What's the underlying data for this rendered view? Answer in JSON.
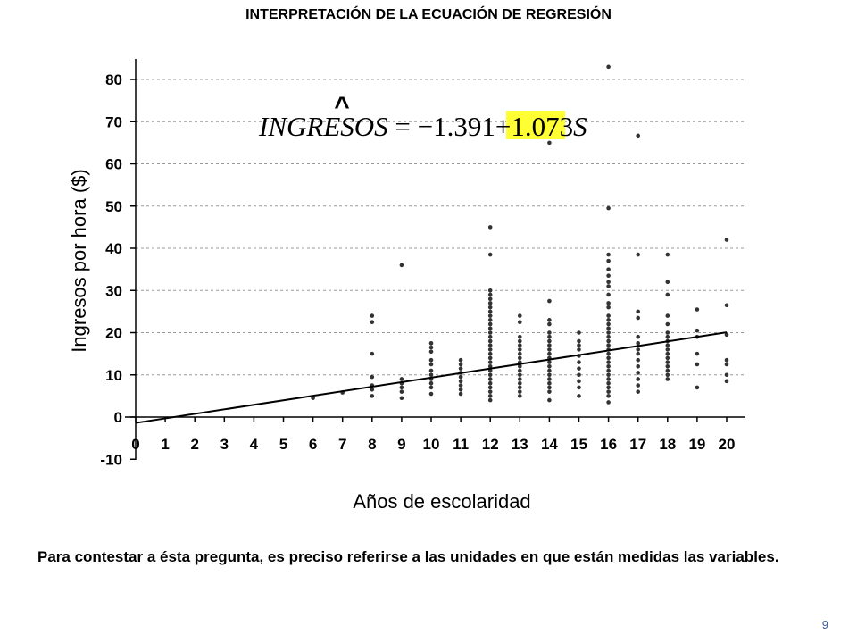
{
  "slide": {
    "title": "INTERPRETACIÓN DE LA ECUACIÓN DE REGRESIÓN",
    "caption": "Para contestar a ésta pregunta, es preciso referirse a las unidades en que están medidas las variables.",
    "page_number": "9"
  },
  "equation": {
    "hat": "^",
    "lhs": "INGRESOS",
    "equals_intercept": " = −1.391+",
    "slope": "1.073",
    "var": "S",
    "highlight_color": "#ffff33"
  },
  "chart_data": {
    "type": "scatter",
    "xlabel": "Años de escolaridad",
    "ylabel": "Ingresos por hora ($)",
    "xlim": [
      0,
      20
    ],
    "ylim": [
      -10,
      85
    ],
    "x_ticks": [
      0,
      1,
      2,
      3,
      4,
      5,
      6,
      7,
      8,
      9,
      10,
      11,
      12,
      13,
      14,
      15,
      16,
      17,
      18,
      19,
      20
    ],
    "y_ticks": [
      -10,
      0,
      10,
      20,
      30,
      40,
      50,
      60,
      70,
      80
    ],
    "grid": "horizontal dashed",
    "regression_line": {
      "intercept": -1.391,
      "slope": 1.073
    },
    "marker_color": "#333333",
    "line_color": "#000000",
    "points": [
      [
        6,
        4.5
      ],
      [
        7,
        5.8
      ],
      [
        8,
        5
      ],
      [
        8,
        6.5
      ],
      [
        8,
        7.5
      ],
      [
        8,
        9.5
      ],
      [
        8,
        15
      ],
      [
        8,
        22.5
      ],
      [
        8,
        24
      ],
      [
        9,
        4.5
      ],
      [
        9,
        6
      ],
      [
        9,
        7
      ],
      [
        9,
        8
      ],
      [
        9,
        9
      ],
      [
        9,
        36
      ],
      [
        10,
        5.5
      ],
      [
        10,
        7
      ],
      [
        10,
        8
      ],
      [
        10,
        9
      ],
      [
        10,
        10
      ],
      [
        10,
        11
      ],
      [
        10,
        12.5
      ],
      [
        10,
        13.5
      ],
      [
        10,
        15.5
      ],
      [
        10,
        16.5
      ],
      [
        10,
        17.5
      ],
      [
        11,
        5.5
      ],
      [
        11,
        6.5
      ],
      [
        11,
        7.5
      ],
      [
        11,
        8.5
      ],
      [
        11,
        9.5
      ],
      [
        11,
        10.5
      ],
      [
        11,
        11.5
      ],
      [
        11,
        12.5
      ],
      [
        11,
        13.5
      ],
      [
        12,
        4
      ],
      [
        12,
        5
      ],
      [
        12,
        6
      ],
      [
        12,
        7
      ],
      [
        12,
        8
      ],
      [
        12,
        9
      ],
      [
        12,
        10
      ],
      [
        12,
        11
      ],
      [
        12,
        12
      ],
      [
        12,
        13
      ],
      [
        12,
        14
      ],
      [
        12,
        15
      ],
      [
        12,
        16
      ],
      [
        12,
        17
      ],
      [
        12,
        18
      ],
      [
        12,
        19
      ],
      [
        12,
        20
      ],
      [
        12,
        21
      ],
      [
        12,
        22
      ],
      [
        12,
        23
      ],
      [
        12,
        24
      ],
      [
        12,
        25
      ],
      [
        12,
        26
      ],
      [
        12,
        27
      ],
      [
        12,
        28
      ],
      [
        12,
        29
      ],
      [
        12,
        30
      ],
      [
        12,
        38.5
      ],
      [
        12,
        45
      ],
      [
        13,
        5
      ],
      [
        13,
        6
      ],
      [
        13,
        7
      ],
      [
        13,
        8
      ],
      [
        13,
        9
      ],
      [
        13,
        10
      ],
      [
        13,
        11
      ],
      [
        13,
        12
      ],
      [
        13,
        13
      ],
      [
        13,
        14
      ],
      [
        13,
        15
      ],
      [
        13,
        16
      ],
      [
        13,
        17
      ],
      [
        13,
        18
      ],
      [
        13,
        19
      ],
      [
        13,
        22.5
      ],
      [
        13,
        24
      ],
      [
        14,
        4
      ],
      [
        14,
        6
      ],
      [
        14,
        7
      ],
      [
        14,
        8
      ],
      [
        14,
        9
      ],
      [
        14,
        10
      ],
      [
        14,
        11
      ],
      [
        14,
        12
      ],
      [
        14,
        13
      ],
      [
        14,
        14
      ],
      [
        14,
        15
      ],
      [
        14,
        16
      ],
      [
        14,
        17
      ],
      [
        14,
        18
      ],
      [
        14,
        19
      ],
      [
        14,
        20
      ],
      [
        14,
        22
      ],
      [
        14,
        23
      ],
      [
        14,
        27.5
      ],
      [
        14,
        65
      ],
      [
        15,
        5
      ],
      [
        15,
        7
      ],
      [
        15,
        8.5
      ],
      [
        15,
        10
      ],
      [
        15,
        11.5
      ],
      [
        15,
        13
      ],
      [
        15,
        14.5
      ],
      [
        15,
        16
      ],
      [
        15,
        17
      ],
      [
        15,
        18
      ],
      [
        15,
        20
      ],
      [
        16,
        3.5
      ],
      [
        16,
        5
      ],
      [
        16,
        6
      ],
      [
        16,
        7
      ],
      [
        16,
        8
      ],
      [
        16,
        9
      ],
      [
        16,
        10
      ],
      [
        16,
        11
      ],
      [
        16,
        12
      ],
      [
        16,
        13
      ],
      [
        16,
        14
      ],
      [
        16,
        15
      ],
      [
        16,
        16
      ],
      [
        16,
        17
      ],
      [
        16,
        18
      ],
      [
        16,
        19
      ],
      [
        16,
        20
      ],
      [
        16,
        21
      ],
      [
        16,
        22
      ],
      [
        16,
        23
      ],
      [
        16,
        24
      ],
      [
        16,
        26
      ],
      [
        16,
        27
      ],
      [
        16,
        29
      ],
      [
        16,
        31
      ],
      [
        16,
        32
      ],
      [
        16,
        33.5
      ],
      [
        16,
        35
      ],
      [
        16,
        37
      ],
      [
        16,
        38.5
      ],
      [
        16,
        49.5
      ],
      [
        16,
        83
      ],
      [
        17,
        6
      ],
      [
        17,
        7.5
      ],
      [
        17,
        9
      ],
      [
        17,
        10.5
      ],
      [
        17,
        12
      ],
      [
        17,
        13.5
      ],
      [
        17,
        15
      ],
      [
        17,
        16
      ],
      [
        17,
        17.5
      ],
      [
        17,
        19
      ],
      [
        17,
        23.5
      ],
      [
        17,
        25
      ],
      [
        17,
        38.5
      ],
      [
        17,
        66.7
      ],
      [
        18,
        9
      ],
      [
        18,
        10
      ],
      [
        18,
        11
      ],
      [
        18,
        12
      ],
      [
        18,
        13
      ],
      [
        18,
        14
      ],
      [
        18,
        15
      ],
      [
        18,
        16
      ],
      [
        18,
        17
      ],
      [
        18,
        18
      ],
      [
        18,
        19
      ],
      [
        18,
        20
      ],
      [
        18,
        22
      ],
      [
        18,
        24
      ],
      [
        18,
        29
      ],
      [
        18,
        32
      ],
      [
        18,
        38.5
      ],
      [
        19,
        7
      ],
      [
        19,
        12.5
      ],
      [
        19,
        15
      ],
      [
        19,
        19
      ],
      [
        19,
        20.5
      ],
      [
        19,
        25.5
      ],
      [
        20,
        8.5
      ],
      [
        20,
        10
      ],
      [
        20,
        12.5
      ],
      [
        20,
        13.5
      ],
      [
        20,
        19.5
      ],
      [
        20,
        26.5
      ],
      [
        20,
        42
      ]
    ]
  }
}
